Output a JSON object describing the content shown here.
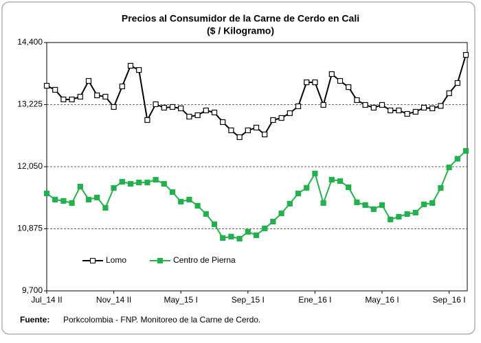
{
  "chart_data": {
    "type": "line",
    "title": "Precios al Consumidor  de la Carne de Cerdo en Cali",
    "subtitle": "($ / Kilogramo)",
    "categories": [
      "Jul_14 II",
      null,
      null,
      null,
      null,
      null,
      null,
      null,
      "Nov_14 II",
      null,
      null,
      null,
      null,
      null,
      null,
      null,
      "May_15 I",
      null,
      null,
      null,
      null,
      null,
      null,
      null,
      "Sep_15 I",
      null,
      null,
      null,
      null,
      null,
      null,
      null,
      "Ene_16 I",
      null,
      null,
      null,
      null,
      null,
      null,
      null,
      "May_16 I",
      null,
      null,
      null,
      null,
      null,
      null,
      null,
      "Sep_16 I",
      null,
      null
    ],
    "series": [
      {
        "name": "Lomo",
        "color": "#000000",
        "values": [
          13582,
          13505,
          13323,
          13323,
          13375,
          13673,
          13400,
          13375,
          13180,
          13570,
          13960,
          13880,
          12933,
          13232,
          13167,
          13180,
          13154,
          12998,
          13024,
          13115,
          13076,
          12894,
          12738,
          12609,
          12738,
          12790,
          12660,
          12933,
          12972,
          13063,
          13193,
          13647,
          13647,
          13219,
          13803,
          13673,
          13556,
          13310,
          13219,
          13167,
          13219,
          13115,
          13115,
          13050,
          13089,
          13167,
          13154,
          13200,
          13440,
          13634,
          14166
        ]
      },
      {
        "name": "Centro de Pierna",
        "color": "#22b14c",
        "values": [
          11544,
          11428,
          11402,
          11363,
          11674,
          11428,
          11467,
          11272,
          11648,
          11765,
          11726,
          11752,
          11752,
          11804,
          11726,
          11570,
          11389,
          11428,
          11311,
          11155,
          10961,
          10701,
          10727,
          10688,
          10818,
          10753,
          10882,
          11012,
          11168,
          11350,
          11544,
          11650,
          11921,
          11363,
          11804,
          11778,
          11661,
          11376,
          11324,
          11246,
          11324,
          11051,
          11103,
          11155,
          11181,
          11337,
          11363,
          11648,
          12038,
          12200,
          12349
        ]
      }
    ],
    "ylim": [
      9700,
      14400
    ],
    "yticks": [
      {
        "value": 9700,
        "label": "9,700"
      },
      {
        "value": 10875,
        "label": "10,875"
      },
      {
        "value": 12050,
        "label": "12,050"
      },
      {
        "value": 13225,
        "label": "13,225"
      },
      {
        "value": 14400,
        "label": "14,400"
      }
    ],
    "grid": true,
    "legend": "lower-left",
    "source_label": "Fuente:",
    "source": "Porkcolombia - FNP.  Monitoreo de la Carne de Cerdo."
  }
}
